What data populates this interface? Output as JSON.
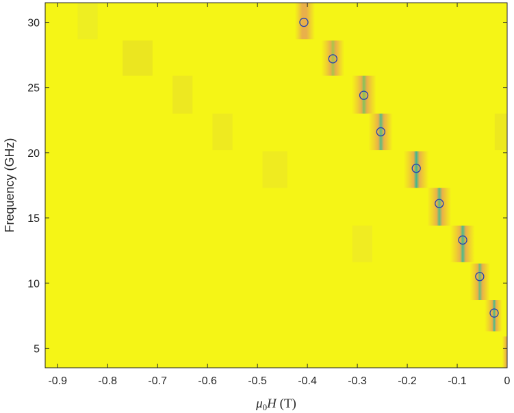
{
  "chart_data": {
    "type": "heatmap",
    "xlabel": "μ0H (T)",
    "xlabel_parts": {
      "mu": "μ",
      "sub": "0",
      "h": "H",
      "unit": " (T)"
    },
    "ylabel": "Frequency (GHz)",
    "xlim": [
      -0.925,
      0.0
    ],
    "ylim": [
      3.5,
      31.5
    ],
    "xticks": [
      -0.9,
      -0.8,
      -0.7,
      -0.6,
      -0.5,
      -0.4,
      -0.3,
      -0.2,
      -0.1,
      0
    ],
    "xtick_labels": [
      "-0.9",
      "-0.8",
      "-0.7",
      "-0.6",
      "-0.5",
      "-0.4",
      "-0.3",
      "-0.2",
      "-0.1",
      "0"
    ],
    "yticks": [
      5,
      10,
      15,
      20,
      25,
      30
    ],
    "ytick_labels": [
      "5",
      "10",
      "15",
      "20",
      "25",
      "30"
    ],
    "background_color": "#f5f516",
    "marker_color": "#1f3fb4",
    "bands": [
      {
        "f_min": 28.7,
        "f_max": 31.5,
        "x_min": -0.425,
        "x_max": -0.385,
        "center": -0.407,
        "core": "#e9b04a"
      },
      {
        "f_min": 25.9,
        "f_max": 28.6,
        "x_min": -0.372,
        "x_max": -0.326,
        "center": -0.349,
        "core": "#a5c54a"
      },
      {
        "f_min": 23.0,
        "f_max": 25.9,
        "x_min": -0.311,
        "x_max": -0.262,
        "center": -0.287,
        "core": "#84c25a"
      },
      {
        "f_min": 20.2,
        "f_max": 23.0,
        "x_min": -0.278,
        "x_max": -0.229,
        "center": -0.253,
        "core": "#58bb84"
      },
      {
        "f_min": 17.3,
        "f_max": 20.1,
        "x_min": -0.207,
        "x_max": -0.157,
        "center": -0.182,
        "core": "#3fb68f"
      },
      {
        "f_min": 14.4,
        "f_max": 17.3,
        "x_min": -0.16,
        "x_max": -0.112,
        "center": -0.136,
        "core": "#58bb84"
      },
      {
        "f_min": 11.6,
        "f_max": 14.4,
        "x_min": -0.114,
        "x_max": -0.065,
        "center": -0.089,
        "core": "#4ab98b"
      },
      {
        "f_min": 8.7,
        "f_max": 11.5,
        "x_min": -0.075,
        "x_max": -0.034,
        "center": -0.055,
        "core": "#64bc7e"
      },
      {
        "f_min": 6.3,
        "f_max": 8.7,
        "x_min": -0.045,
        "x_max": -0.01,
        "center": -0.026,
        "core": "#4ab98b"
      },
      {
        "f_min": 3.5,
        "f_max": 5.9,
        "x_min": -0.01,
        "x_max": 0.0,
        "center": 0.0,
        "core": "#e7bf3a"
      }
    ],
    "faint_patches": [
      {
        "f_min": 28.7,
        "f_max": 31.5,
        "x_min": -0.86,
        "x_max": -0.82,
        "color": "#eeee22"
      },
      {
        "f_min": 25.9,
        "f_max": 28.6,
        "x_min": -0.77,
        "x_max": -0.71,
        "color": "#ebe620"
      },
      {
        "f_min": 23.0,
        "f_max": 25.9,
        "x_min": -0.67,
        "x_max": -0.63,
        "color": "#ede821"
      },
      {
        "f_min": 20.2,
        "f_max": 23.0,
        "x_min": -0.59,
        "x_max": -0.55,
        "color": "#eeea20"
      },
      {
        "f_min": 17.3,
        "f_max": 20.1,
        "x_min": -0.49,
        "x_max": -0.44,
        "color": "#efeb20"
      },
      {
        "f_min": 11.6,
        "f_max": 14.4,
        "x_min": -0.31,
        "x_max": -0.27,
        "color": "#f0ec22"
      },
      {
        "f_min": 20.2,
        "f_max": 23.0,
        "x_min": -0.025,
        "x_max": 0.0,
        "color": "#ede81f"
      }
    ],
    "series": [
      {
        "type": "scatter",
        "x": [
          -0.407,
          -0.349,
          -0.287,
          -0.253,
          -0.182,
          -0.136,
          -0.089,
          -0.055,
          -0.026
        ],
        "y": [
          30.0,
          27.2,
          24.4,
          21.6,
          18.8,
          16.1,
          13.3,
          10.5,
          7.7
        ]
      }
    ]
  }
}
